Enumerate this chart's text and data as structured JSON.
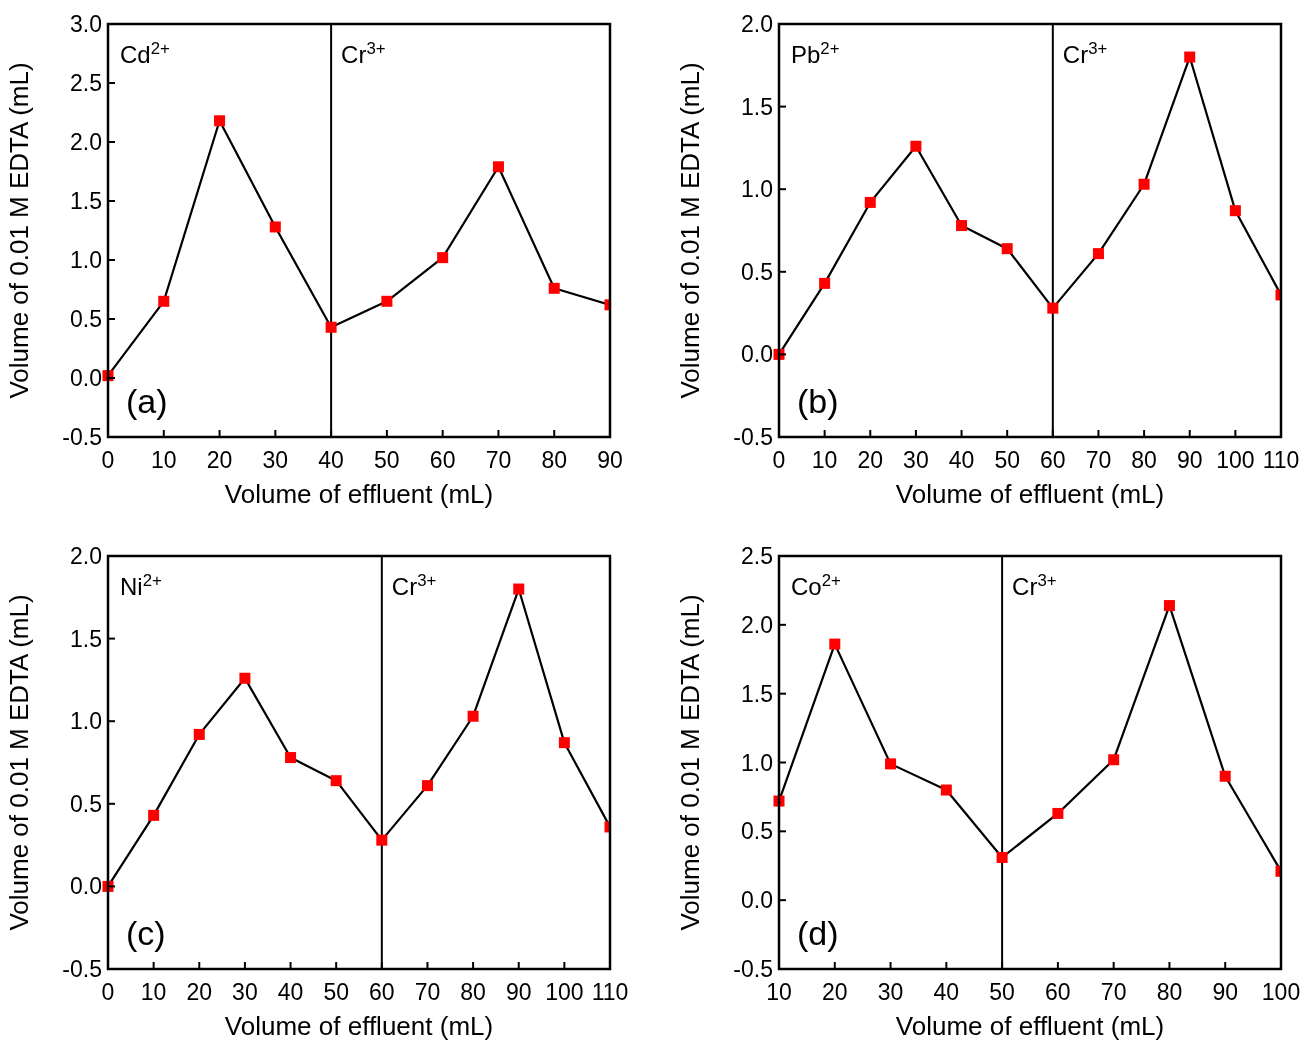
{
  "chart_data": [
    {
      "type": "line",
      "xlabel": "Volume of effluent (mL)",
      "ylabel": "Volume of 0.01 M EDTA (mL)",
      "x": [
        0,
        10,
        20,
        30,
        40,
        50,
        60,
        70,
        80,
        90
      ],
      "xlim": [
        0,
        90
      ],
      "xticks": [
        0,
        10,
        20,
        30,
        40,
        50,
        60,
        70,
        80,
        90
      ],
      "ylim": [
        -0.5,
        3.0
      ],
      "yticks": [
        -0.5,
        {
          "value": 0,
          "label": "0.0"
        },
        0.5,
        {
          "value": 1,
          "label": "1.0"
        },
        1.5,
        {
          "value": 2,
          "label": "2.0"
        },
        2.5,
        {
          "value": 3,
          "label": "3.0"
        }
      ],
      "marker": "square",
      "line_style": "solid",
      "series": [
        {
          "color": "#ff0000",
          "values": [
            0.02,
            0.65,
            2.18,
            1.28,
            0.43,
            0.65,
            1.02,
            1.79,
            0.76,
            0.62
          ]
        }
      ],
      "ref_lines": [
        {
          "axis": "x",
          "value": 40,
          "color": "#000000"
        }
      ],
      "annotations": [
        "Cd$^{2+}$",
        "Cr$^{3+}$",
        "(a)"
      ]
    },
    {
      "type": "line",
      "xlabel": "Volume of effluent (mL)",
      "ylabel": "Volume of 0.01 M EDTA (mL)",
      "x": [
        0,
        10,
        20,
        30,
        40,
        50,
        60,
        70,
        80,
        90,
        100,
        110
      ],
      "xlim": [
        0,
        110
      ],
      "xticks": [
        0,
        10,
        20,
        30,
        40,
        50,
        60,
        70,
        80,
        90,
        100,
        110
      ],
      "ylim": [
        -0.5,
        2.0
      ],
      "yticks": [
        -0.5,
        {
          "value": 0,
          "label": "0.0"
        },
        0.5,
        {
          "value": 1,
          "label": "1.0"
        },
        1.5,
        {
          "value": 2,
          "label": "2.0"
        }
      ],
      "marker": "square",
      "line_style": "solid",
      "series": [
        {
          "color": "#ff0000",
          "values": [
            0.0,
            0.43,
            0.92,
            1.26,
            0.78,
            0.64,
            0.28,
            0.61,
            1.03,
            1.8,
            0.87,
            0.36
          ]
        }
      ],
      "ref_lines": [
        {
          "axis": "x",
          "value": 60,
          "color": "#000000"
        }
      ],
      "annotations": [
        "Pb$^{2+}$",
        "Cr$^{3+}$",
        "(b)"
      ]
    },
    {
      "type": "line",
      "xlabel": "Volume of effluent (mL)",
      "ylabel": "Volume of 0.01 M EDTA (mL)",
      "x": [
        0,
        10,
        20,
        30,
        40,
        50,
        60,
        70,
        80,
        90,
        100,
        110
      ],
      "xlim": [
        0,
        110
      ],
      "xticks": [
        0,
        10,
        20,
        30,
        40,
        50,
        60,
        70,
        80,
        90,
        100,
        110
      ],
      "ylim": [
        -0.5,
        2.0
      ],
      "yticks": [
        -0.5,
        {
          "value": 0,
          "label": "0.0"
        },
        0.5,
        {
          "value": 1,
          "label": "1.0"
        },
        1.5,
        {
          "value": 2,
          "label": "2.0"
        }
      ],
      "marker": "square",
      "line_style": "solid",
      "series": [
        {
          "color": "#ff0000",
          "values": [
            0.0,
            0.43,
            0.92,
            1.26,
            0.78,
            0.64,
            0.28,
            0.61,
            1.03,
            1.8,
            0.87,
            0.36
          ]
        }
      ],
      "ref_lines": [
        {
          "axis": "x",
          "value": 60,
          "color": "#000000"
        }
      ],
      "annotations": [
        "Ni$^{2+}$",
        "Cr$^{3+}$",
        "(c)"
      ]
    },
    {
      "type": "line",
      "xlabel": "Volume of effluent (mL)",
      "ylabel": "Volume of 0.01 M EDTA (mL)",
      "x": [
        10,
        20,
        30,
        40,
        50,
        60,
        70,
        80,
        90,
        100
      ],
      "xlim": [
        10,
        100
      ],
      "xticks": [
        10,
        20,
        30,
        40,
        50,
        60,
        70,
        80,
        90,
        100
      ],
      "ylim": [
        -0.5,
        2.5
      ],
      "yticks": [
        -0.5,
        {
          "value": 0,
          "label": "0.0"
        },
        0.5,
        {
          "value": 1,
          "label": "1.0"
        },
        1.5,
        {
          "value": 2,
          "label": "2.0"
        },
        2.5
      ],
      "marker": "square",
      "line_style": "solid",
      "series": [
        {
          "color": "#ff0000",
          "values": [
            0.72,
            1.86,
            0.99,
            0.8,
            0.31,
            0.63,
            1.02,
            2.14,
            0.9,
            0.21
          ]
        }
      ],
      "ref_lines": [
        {
          "axis": "x",
          "value": 50,
          "color": "#000000"
        }
      ],
      "annotations": [
        "Co$^{2+}$",
        "Cr$^{3+}$",
        "(d)"
      ]
    }
  ]
}
